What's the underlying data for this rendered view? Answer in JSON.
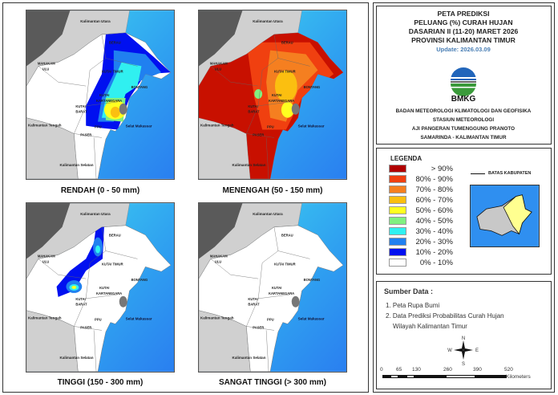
{
  "maps": [
    {
      "caption": "RENDAH (0 - 50 mm)",
      "pattern": "rendah"
    },
    {
      "caption": "MENENGAH (50 - 150 mm)",
      "pattern": "menengah"
    },
    {
      "caption": "TINGGI (150 - 300 mm)",
      "pattern": "tinggi"
    },
    {
      "caption": "SANGAT TINGGI (> 300 mm)",
      "pattern": "none"
    }
  ],
  "map_labels": {
    "kaltara": "Kalimantan Utara",
    "berau": "BERAU",
    "mahulu1": "MAHAKAM",
    "mahulu2": "ULU",
    "kutim": "KUTAI TIMUR",
    "bontang": "BONTANG",
    "kukar1": "KUTAI",
    "kukar2": "KARTANEGARA",
    "kubar1": "KUTAI",
    "kubar2": "BARAT",
    "kalteng": "Kalimantan Tengah",
    "paser": "PASER",
    "ppu": "PPU",
    "kalsel": "Kalimantan Selatan",
    "selat": "Selat Makassar"
  },
  "header": {
    "title_lines": [
      "PETA PREDIKSI",
      "PELUANG (%) CURAH HUJAN",
      "DASARIAN II (11-20) MARET 2026",
      "PROVINSI KALIMANTAN TIMUR"
    ],
    "update": "Update: 2026.03.09",
    "logo_text": "BMKG",
    "org_lines": [
      "BADAN METEOROLOGI KLIMATOLOGI DAN GEOFISIKA",
      "STASIUN METEOROLOGI",
      "AJI PANGERAN TUMENGGUNG PRANOTO",
      "SAMARINDA - KALIMANTAN TIMUR"
    ]
  },
  "legend": {
    "title": "LEGENDA",
    "boundary_label": "BATAS KABUPATEN",
    "items": [
      {
        "label": "> 90%",
        "color": "#b00000"
      },
      {
        "label": "80% - 90%",
        "color": "#f04010"
      },
      {
        "label": "70% - 80%",
        "color": "#f57f20"
      },
      {
        "label": "60% - 70%",
        "color": "#fbbf10"
      },
      {
        "label": "50% - 60%",
        "color": "#ffff20"
      },
      {
        "label": "40% - 50%",
        "color": "#80f080"
      },
      {
        "label": "30% - 40%",
        "color": "#30f0f0"
      },
      {
        "label": "20% - 30%",
        "color": "#2080f0"
      },
      {
        "label": "10% - 20%",
        "color": "#0010f0"
      },
      {
        "label": "0% - 10%",
        "color": "#ffffff"
      }
    ]
  },
  "source": {
    "title": "Sumber Data :",
    "items": [
      "1. Peta Rupa Bumi",
      "2. Data Prediksi Probabilitas Curah Hujan"
    ],
    "items_cont": "Wilayah Kalimantan Timur"
  },
  "compass": {
    "n": "N",
    "s": "S",
    "e": "E",
    "w": "W"
  },
  "scale": {
    "ticks": [
      "0",
      "65",
      "130",
      "260",
      "390",
      "520"
    ],
    "unit": "Kilometers"
  }
}
